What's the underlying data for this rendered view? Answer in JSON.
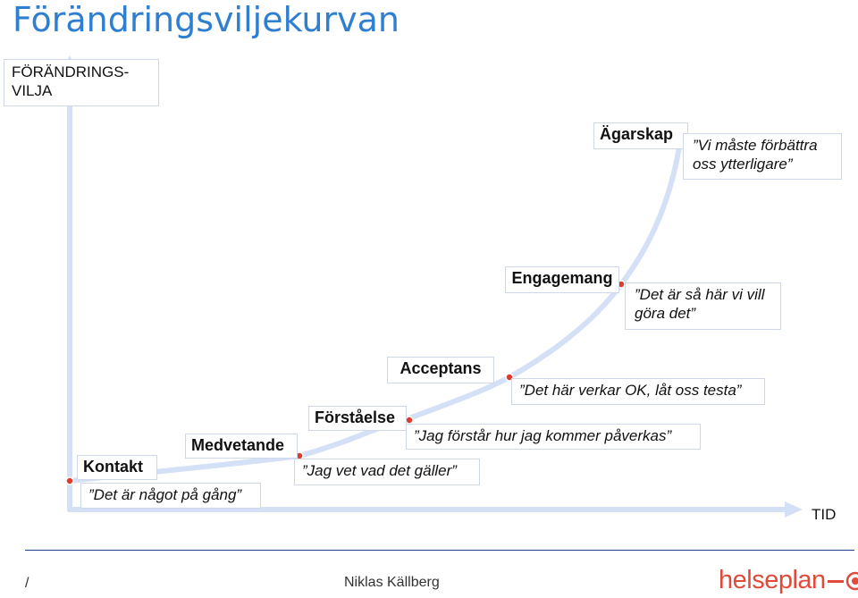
{
  "title": "Förändringsviljekurvan",
  "y_axis_label": "FÖRÄNDRINGS-\nVILJA",
  "x_axis_label": "TID",
  "stages": [
    {
      "name": "Kontakt",
      "quote": "”Det är något på gång”"
    },
    {
      "name": "Medvetande",
      "quote": "”Jag vet vad det gäller”"
    },
    {
      "name": "Förståelse",
      "quote": "”Jag förstår hur jag kommer påverkas”"
    },
    {
      "name": "Acceptans",
      "quote": "”Det här verkar OK, låt oss testa”"
    },
    {
      "name": "Engagemang",
      "quote": "”Det är så här vi vill göra det”"
    },
    {
      "name": "Ägarskap",
      "quote": "”Vi måste förbättra oss ytterligare”"
    }
  ],
  "footer": {
    "slash": "/",
    "author": "Niklas Källberg",
    "logo_text": "helseplan",
    "logo_icon": "target-arrow-icon"
  },
  "colors": {
    "title": "#2f7fd0",
    "axis": "#d3e0f6",
    "curve": "#d3e0f6",
    "marker": "#e03b2b",
    "footer_line": "#1f3f8f",
    "logo": "#e04a3a"
  }
}
